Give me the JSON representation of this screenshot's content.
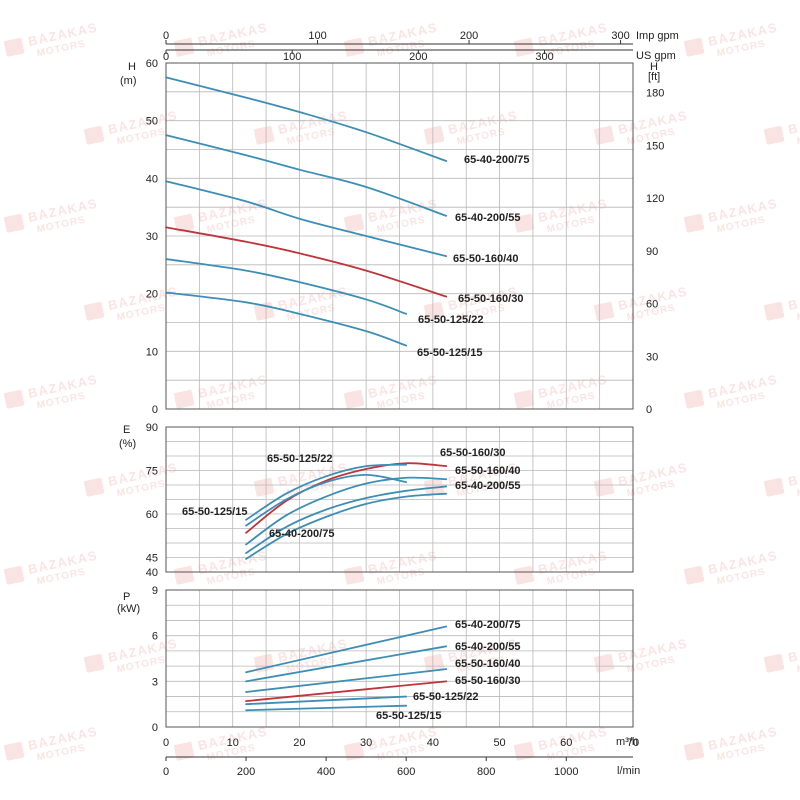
{
  "colors": {
    "blue": "#3d8eb5",
    "red": "#c0343c",
    "text": "#222222",
    "grid": "#b8b8b8"
  },
  "axes": {
    "imp_gpm": {
      "unit": "Imp gpm",
      "ticks": [
        "0",
        "100",
        "200",
        "300"
      ],
      "values": [
        0,
        100,
        200,
        300
      ]
    },
    "us_gpm": {
      "unit": "US gpm",
      "ticks": [
        "0",
        "100",
        "200",
        "300"
      ],
      "values": [
        0,
        100,
        200,
        300
      ]
    },
    "m3h": {
      "unit": "m³/h",
      "ticks": [
        "0",
        "10",
        "20",
        "30",
        "40",
        "50",
        "60",
        "70"
      ],
      "values": [
        0,
        10,
        20,
        30,
        40,
        50,
        60,
        70
      ]
    },
    "lmin": {
      "unit": "l/min",
      "ticks": [
        "0",
        "200",
        "400",
        "600",
        "800",
        "1000"
      ],
      "values": [
        0,
        200,
        400,
        600,
        800,
        1000
      ]
    }
  },
  "chart_data": [
    {
      "type": "line",
      "ylabel": "H",
      "yunit": "(m)",
      "y2label": "H",
      "y2unit": "[ft]",
      "xlim": [
        0,
        70
      ],
      "ylim": [
        0,
        60
      ],
      "y2lim": [
        0,
        196.85
      ],
      "yticks": [
        "0",
        "10",
        "20",
        "30",
        "40",
        "50",
        "60"
      ],
      "ytick_values": [
        0,
        10,
        20,
        30,
        40,
        50,
        60
      ],
      "y2ticks": [
        "0",
        "30",
        "60",
        "90",
        "120",
        "150",
        "180"
      ],
      "y2tick_values": [
        0,
        30,
        60,
        90,
        120,
        150,
        180
      ],
      "series": [
        {
          "name": "65-40-200/75",
          "color_key": "blue",
          "x": [
            0,
            12,
            20,
            30,
            42
          ],
          "y": [
            57.5,
            54,
            51.5,
            48,
            43
          ]
        },
        {
          "name": "65-40-200/55",
          "color_key": "blue",
          "x": [
            0,
            12,
            20,
            30,
            42
          ],
          "y": [
            47.5,
            44,
            41.5,
            38.5,
            33.5
          ]
        },
        {
          "name": "65-50-160/40",
          "color_key": "blue",
          "x": [
            0,
            12,
            20,
            30,
            42
          ],
          "y": [
            39.5,
            36,
            33,
            30,
            26.5
          ]
        },
        {
          "name": "65-50-160/30",
          "color_key": "red",
          "x": [
            0,
            12,
            20,
            30,
            42
          ],
          "y": [
            31.5,
            29,
            27,
            24,
            19.5
          ]
        },
        {
          "name": "65-50-125/22",
          "color_key": "blue",
          "x": [
            0,
            12,
            20,
            30,
            36
          ],
          "y": [
            26,
            24,
            22,
            19,
            16.5
          ]
        },
        {
          "name": "65-50-125/15",
          "color_key": "blue",
          "x": [
            0,
            12,
            20,
            30,
            36
          ],
          "y": [
            20.2,
            18.5,
            16.5,
            13.5,
            11
          ]
        }
      ]
    },
    {
      "type": "line",
      "ylabel": "E",
      "yunit": "(%)",
      "xlim": [
        0,
        70
      ],
      "ylim": [
        40,
        90
      ],
      "yticks": [
        "40",
        "45",
        "60",
        "75",
        "90"
      ],
      "ytick_values": [
        40,
        45,
        60,
        75,
        90
      ],
      "series": [
        {
          "name": "65-50-160/30",
          "color_key": "red",
          "x": [
            12,
            18,
            24,
            30,
            36,
            42
          ],
          "y": [
            53.5,
            64.5,
            71.5,
            75.5,
            77.5,
            76.5
          ]
        },
        {
          "name": "65-50-125/22",
          "color_key": "blue",
          "x": [
            12,
            18,
            24,
            30,
            36
          ],
          "y": [
            58,
            67,
            73,
            76.5,
            77
          ]
        },
        {
          "name": "65-50-125/15",
          "color_key": "blue",
          "x": [
            12,
            18,
            24,
            30,
            36
          ],
          "y": [
            56,
            65,
            71,
            73.5,
            71
          ]
        },
        {
          "name": "65-50-160/40",
          "color_key": "blue",
          "x": [
            12,
            18,
            24,
            30,
            36,
            42
          ],
          "y": [
            49.5,
            59.5,
            66,
            70.5,
            72.5,
            72
          ]
        },
        {
          "name": "65-40-200/55",
          "color_key": "blue",
          "x": [
            12,
            18,
            24,
            30,
            36,
            42
          ],
          "y": [
            46.5,
            55.5,
            61.5,
            65.5,
            68,
            69.5
          ]
        },
        {
          "name": "65-40-200/75",
          "color_key": "blue",
          "x": [
            12,
            18,
            24,
            30,
            36,
            42
          ],
          "y": [
            44.5,
            53,
            59,
            63.5,
            66,
            67
          ]
        }
      ]
    },
    {
      "type": "line",
      "ylabel": "P",
      "yunit": "(kW)",
      "xlim": [
        0,
        70
      ],
      "ylim": [
        0,
        9
      ],
      "yticks": [
        "0",
        "3",
        "6",
        "9"
      ],
      "ytick_values": [
        0,
        3,
        6,
        9
      ],
      "series": [
        {
          "name": "65-40-200/75",
          "color_key": "blue",
          "x": [
            12,
            42
          ],
          "y": [
            3.6,
            6.6
          ]
        },
        {
          "name": "65-40-200/55",
          "color_key": "blue",
          "x": [
            12,
            42
          ],
          "y": [
            3.0,
            5.3
          ]
        },
        {
          "name": "65-50-160/40",
          "color_key": "blue",
          "x": [
            12,
            42
          ],
          "y": [
            2.3,
            3.8
          ]
        },
        {
          "name": "65-50-160/30",
          "color_key": "red",
          "x": [
            12,
            42
          ],
          "y": [
            1.7,
            3.0
          ]
        },
        {
          "name": "65-50-125/22",
          "color_key": "blue",
          "x": [
            12,
            36
          ],
          "y": [
            1.5,
            2.0
          ]
        },
        {
          "name": "65-50-125/15",
          "color_key": "blue",
          "x": [
            12,
            36
          ],
          "y": [
            1.1,
            1.4
          ]
        }
      ]
    }
  ],
  "labels": {
    "h": [
      {
        "text": "65-40-200/75",
        "color_key": "blue"
      },
      {
        "text": "65-40-200/55",
        "color_key": "blue"
      },
      {
        "text": "65-50-160/40",
        "color_key": "blue"
      },
      {
        "text": "65-50-160/30",
        "color_key": "red"
      },
      {
        "text": "65-50-125/22",
        "color_key": "blue"
      },
      {
        "text": "65-50-125/15",
        "color_key": "blue"
      }
    ],
    "e": [
      {
        "text": "65-50-125/22",
        "color_key": "blue"
      },
      {
        "text": "65-50-160/30",
        "color_key": "red"
      },
      {
        "text": "65-50-160/40",
        "color_key": "blue"
      },
      {
        "text": "65-40-200/55",
        "color_key": "blue"
      },
      {
        "text": "65-50-125/15",
        "color_key": "blue"
      },
      {
        "text": "65-40-200/75",
        "color_key": "blue"
      }
    ],
    "p": [
      {
        "text": "65-40-200/75",
        "color_key": "blue"
      },
      {
        "text": "65-40-200/55",
        "color_key": "blue"
      },
      {
        "text": "65-50-160/40",
        "color_key": "blue"
      },
      {
        "text": "65-50-160/30",
        "color_key": "red"
      },
      {
        "text": "65-50-125/22",
        "color_key": "blue"
      },
      {
        "text": "65-50-125/15",
        "color_key": "blue"
      }
    ]
  },
  "watermark": {
    "line1": "BAZAKAS",
    "line2": "MOTORS"
  }
}
